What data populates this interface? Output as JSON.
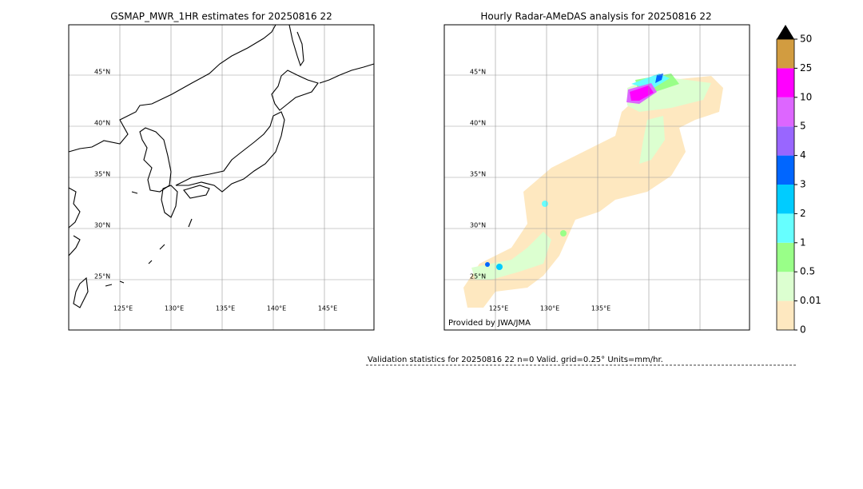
{
  "left_map": {
    "title": "GSMAP_MWR_1HR estimates for 20250816 22",
    "lat_labels": [
      "45°N",
      "40°N",
      "35°N",
      "30°N",
      "25°N"
    ],
    "lon_labels": [
      "125°E",
      "130°E",
      "135°E",
      "140°E",
      "145°E"
    ]
  },
  "right_map": {
    "title": "Hourly Radar-AMeDAS analysis for 20250816 22",
    "lat_labels": [
      "45°N",
      "40°N",
      "35°N",
      "30°N",
      "25°N"
    ],
    "lon_labels": [
      "125°E",
      "130°E",
      "135°E"
    ],
    "credit": "Provided by JWA/JMA"
  },
  "colorbar": {
    "labels": [
      "0",
      "0.01",
      "0.5",
      "1",
      "2",
      "3",
      "4",
      "5",
      "10",
      "25",
      "50"
    ],
    "colors": [
      "#fee8c0",
      "#dcffd0",
      "#99ff88",
      "#66ffff",
      "#00ccff",
      "#0066ff",
      "#9966ff",
      "#dd66ff",
      "#ff00ff",
      "#d29c40"
    ],
    "extend_color": "#000000"
  },
  "validation": "Validation statistics for 20250816 22  n=0 Valid. grid=0.25° Units=mm/hr."
}
